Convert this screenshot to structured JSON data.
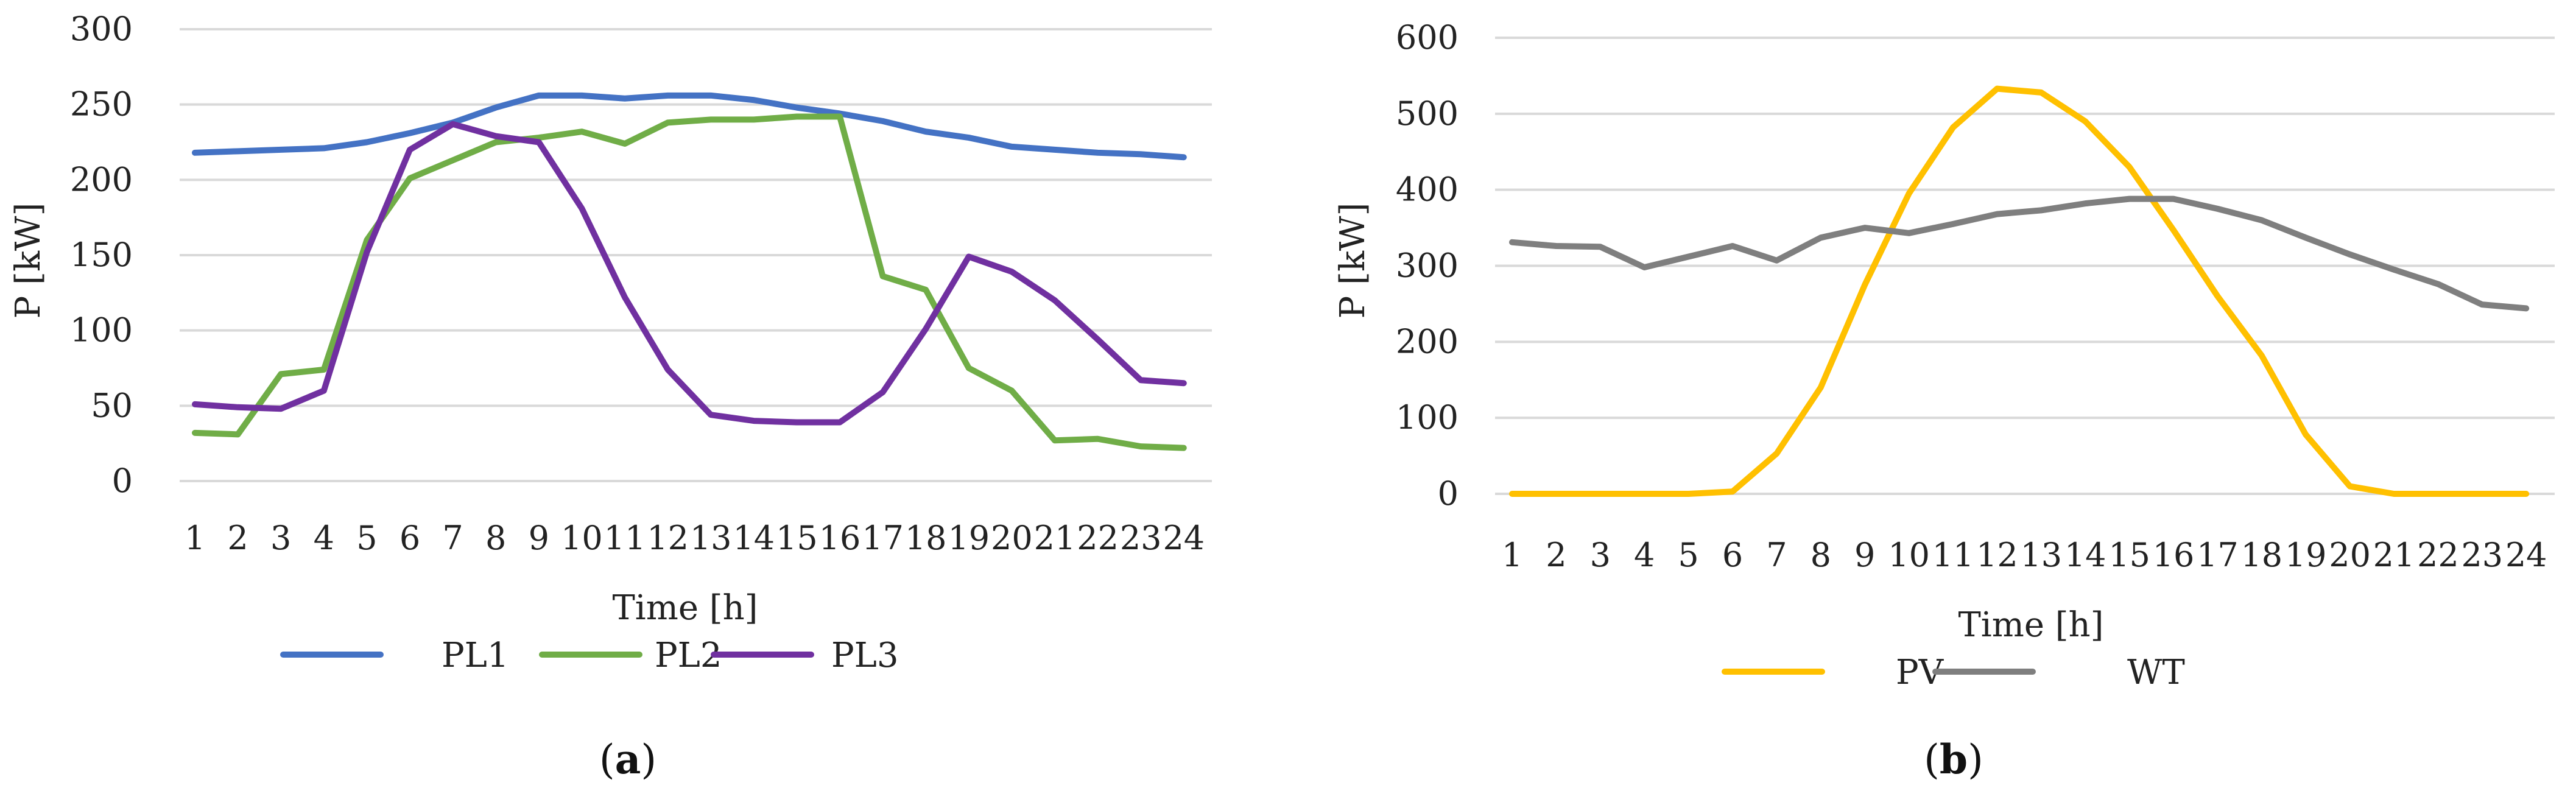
{
  "chart_data": [
    {
      "type": "line",
      "panel_label": "a",
      "categories": [
        "1",
        "2",
        "3",
        "4",
        "5",
        "6",
        "7",
        "8",
        "9",
        "10",
        "11",
        "12",
        "13",
        "14",
        "15",
        "16",
        "17",
        "18",
        "19",
        "20",
        "21",
        "22",
        "23",
        "24"
      ],
      "xlabel": "Time [h]",
      "ylabel": "P [kW]",
      "ylim": [
        0,
        300
      ],
      "yticks": [
        0,
        50,
        100,
        150,
        200,
        250,
        300
      ],
      "grid": true,
      "legend_position": "bottom",
      "series": [
        {
          "name": "PL1",
          "color": "#4472C4",
          "values": [
            218,
            219,
            220,
            221,
            225,
            231,
            238,
            248,
            256,
            256,
            254,
            256,
            256,
            253,
            248,
            244,
            239,
            232,
            228,
            222,
            220,
            218,
            217,
            215
          ]
        },
        {
          "name": "PL2",
          "color": "#70AD47",
          "values": [
            32,
            31,
            71,
            74,
            160,
            201,
            213,
            225,
            228,
            232,
            224,
            238,
            240,
            240,
            242,
            242,
            136,
            127,
            75,
            60,
            27,
            28,
            23,
            22
          ]
        },
        {
          "name": "PL3",
          "color": "#7030A0",
          "values": [
            51,
            49,
            48,
            60,
            152,
            220,
            237,
            229,
            225,
            181,
            122,
            74,
            44,
            40,
            39,
            39,
            59,
            101,
            149,
            139,
            120,
            94,
            67,
            65
          ]
        }
      ]
    },
    {
      "type": "line",
      "panel_label": "b",
      "categories": [
        "1",
        "2",
        "3",
        "4",
        "5",
        "6",
        "7",
        "8",
        "9",
        "10",
        "11",
        "12",
        "13",
        "14",
        "15",
        "16",
        "17",
        "18",
        "19",
        "20",
        "21",
        "22",
        "23",
        "24"
      ],
      "xlabel": "Time [h]",
      "ylabel": "P [kW]",
      "ylim": [
        0,
        600
      ],
      "yticks": [
        0,
        100,
        200,
        300,
        400,
        500,
        600
      ],
      "grid": true,
      "legend_position": "bottom",
      "series": [
        {
          "name": "PV",
          "color": "#FFC000",
          "values": [
            0,
            0,
            0,
            0,
            0,
            3,
            53,
            140,
            275,
            395,
            482,
            533,
            528,
            490,
            430,
            347,
            260,
            182,
            78,
            10,
            0,
            0,
            0,
            0
          ]
        },
        {
          "name": "WT",
          "color": "#7F7F7F",
          "values": [
            331,
            326,
            325,
            298,
            312,
            326,
            307,
            337,
            350,
            343,
            355,
            368,
            373,
            382,
            388,
            388,
            375,
            360,
            337,
            315,
            295,
            276,
            249,
            244
          ]
        }
      ]
    }
  ]
}
